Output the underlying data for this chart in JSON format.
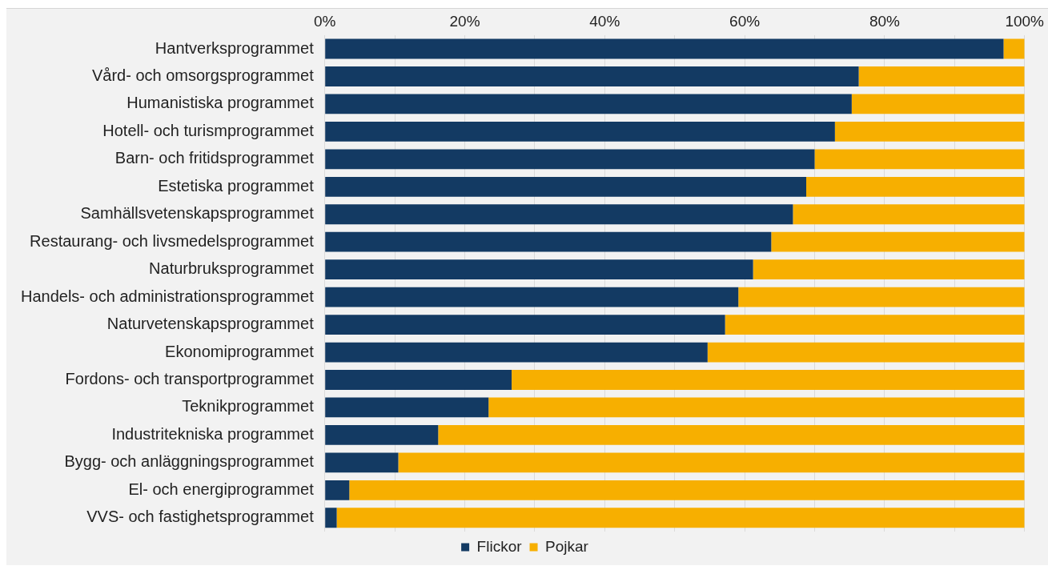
{
  "chart_data": {
    "type": "bar",
    "orientation": "horizontal",
    "stacked": true,
    "grid": "x",
    "legend": "bottom",
    "categories": [
      "Hantverksprogrammet",
      "Vård- och omsorgsprogrammet",
      "Humanistiska programmet",
      "Hotell- och turismprogrammet",
      "Barn- och fritidsprogrammet",
      "Estetiska programmet",
      "Samhällsvetenskapsprogrammet",
      "Restaurang- och livsmedelsprogrammet",
      "Naturbruksprogrammet",
      "Handels- och administrationsprogrammet",
      "Naturvetenskapsprogrammet",
      "Ekonomiprogrammet",
      "Fordons- och transportprogrammet",
      "Teknikprogrammet",
      "Industritekniska programmet",
      "Bygg- och anläggningsprogrammet",
      "El- och energiprogrammet",
      "VVS- och fastighetsprogrammet"
    ],
    "series": [
      {
        "name": "Flickor",
        "color": "#133a63",
        "values": [
          97,
          76.3,
          75.3,
          72.9,
          70,
          68.8,
          66.9,
          63.8,
          61.2,
          59.1,
          57.2,
          54.7,
          26.7,
          23.4,
          16.2,
          10.5,
          3.5,
          1.7
        ]
      },
      {
        "name": "Pojkar",
        "color": "#f7af00",
        "values": [
          3,
          23.7,
          24.7,
          27.1,
          30,
          31.2,
          33.1,
          36.2,
          38.8,
          40.9,
          42.8,
          45.3,
          73.3,
          76.6,
          83.8,
          89.5,
          96.5,
          98.3
        ]
      }
    ],
    "xlim": [
      0,
      100
    ],
    "xticks": [
      {
        "value": 0,
        "label": "0%"
      },
      {
        "value": 10,
        "label": null
      },
      {
        "value": 20,
        "label": "20%"
      },
      {
        "value": 30,
        "label": null
      },
      {
        "value": 40,
        "label": "40%"
      },
      {
        "value": 50,
        "label": null
      },
      {
        "value": 60,
        "label": "60%"
      },
      {
        "value": 70,
        "label": null
      },
      {
        "value": 80,
        "label": "80%"
      },
      {
        "value": 90,
        "label": null
      },
      {
        "value": 100,
        "label": "100%"
      }
    ]
  }
}
